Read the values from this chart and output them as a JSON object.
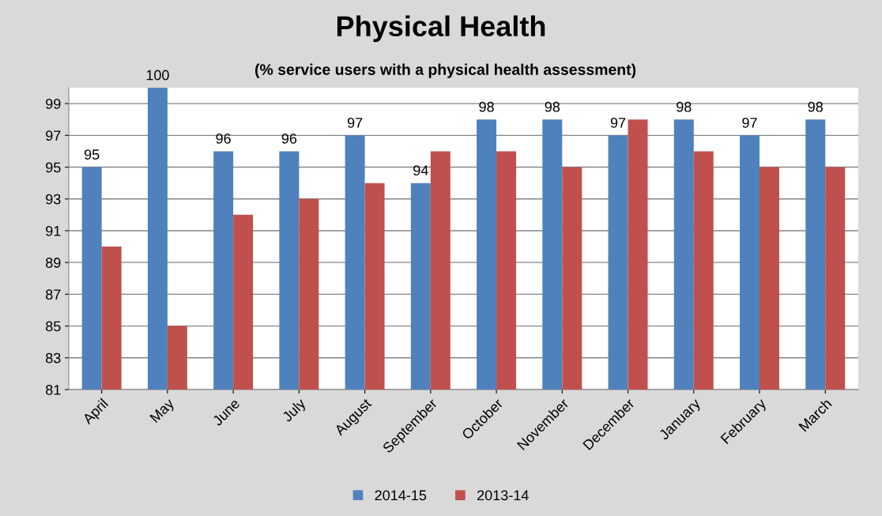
{
  "chart_data": {
    "type": "bar",
    "title": "Physical Health",
    "subtitle": "(% service users with a physical health assessment)",
    "categories": [
      "April",
      "May",
      "June",
      "July",
      "August",
      "September",
      "October",
      "November",
      "December",
      "January",
      "February",
      "March"
    ],
    "series": [
      {
        "name": "2014-15",
        "color": "#4f81bd",
        "values": [
          95,
          100,
          96,
          96,
          97,
          94,
          98,
          98,
          97,
          98,
          97,
          98
        ],
        "value_labels": [
          "95",
          "100",
          "96",
          "96",
          "97",
          "94",
          "98",
          "98",
          "97",
          "98",
          "97",
          "98"
        ]
      },
      {
        "name": "2013-14",
        "color": "#c0504d",
        "values": [
          90,
          85,
          92,
          93,
          94,
          96,
          96,
          95,
          98,
          96,
          95,
          95
        ]
      }
    ],
    "ylim": [
      81,
      100
    ],
    "yticks": [
      81,
      83,
      85,
      87,
      89,
      91,
      93,
      95,
      97,
      99
    ],
    "grid": "y",
    "legend": "bottom"
  }
}
